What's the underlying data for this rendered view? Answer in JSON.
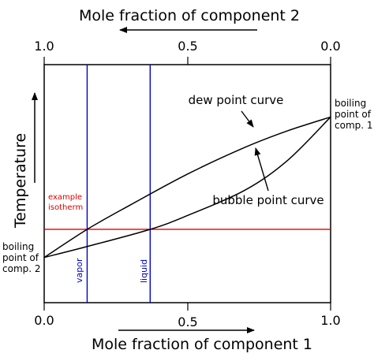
{
  "chart_data": {
    "type": "line",
    "title": "",
    "xlabel_bottom": "Mole fraction of component 1",
    "xlabel_top": "Mole fraction of component 2",
    "ylabel": "Temperature",
    "xlim": [
      0,
      1
    ],
    "ylim": [
      0,
      1
    ],
    "grid": false,
    "ticks_bottom": [
      "0.0",
      "0.5",
      "1.0"
    ],
    "ticks_top": [
      "1.0",
      "0.5",
      "0.0"
    ],
    "series": [
      {
        "label": "dew point curve",
        "x": [
          0,
          0.15,
          0.3,
          0.5,
          0.7,
          0.85,
          1
        ],
        "y": [
          0.19,
          0.308,
          0.41,
          0.54,
          0.652,
          0.722,
          0.78
        ]
      },
      {
        "label": "bubble point curve",
        "x": [
          0,
          0.15,
          0.37,
          0.5,
          0.7,
          0.85,
          1
        ],
        "y": [
          0.19,
          0.236,
          0.308,
          0.366,
          0.472,
          0.598,
          0.78
        ]
      }
    ],
    "isotherm": {
      "label_line1": "example",
      "label_line2": "isotherm",
      "y": 0.308
    },
    "tie_lines": [
      {
        "label": "vapor",
        "x": 0.15
      },
      {
        "label": "liquid",
        "x": 0.37
      }
    ],
    "endpoint_labels": {
      "left": [
        "boiling",
        "point of",
        "comp. 2"
      ],
      "right": [
        "boiling",
        "point of",
        "comp. 1"
      ]
    },
    "colors": {
      "curve": "#000000",
      "isotherm": "#e00000",
      "tie_line": "#0000cc"
    }
  }
}
